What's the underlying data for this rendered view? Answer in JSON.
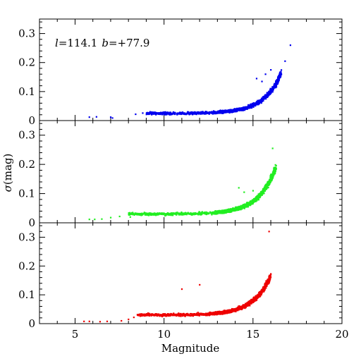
{
  "chart_data": {
    "type": "scatter",
    "xlabel": "Magnitude",
    "ylabel_prefix": "σ",
    "ylabel_unit": "(mag)",
    "xlim": [
      3,
      20
    ],
    "xticks": [
      5,
      10,
      15,
      20
    ],
    "annotation": {
      "l_symbol": "l",
      "l_value": "=114.1",
      "b_symbol": "b",
      "b_value": "=+77.9"
    },
    "panels": [
      {
        "name": "blue-panel",
        "color": "#0000ee",
        "ylim": [
          0,
          0.35
        ],
        "yticks": [
          0,
          0.1,
          0.2,
          0.3
        ],
        "ytick_labels": [
          "0",
          "0.1",
          "0.2",
          "0.3"
        ],
        "curve": {
          "floor": 0.025,
          "scale": 0.0014,
          "e_mag": 12,
          "x_start": 9.0,
          "x_end": 16.6,
          "density_from": 13.0
        },
        "sparse_points": [
          [
            5.8,
            0.012
          ],
          [
            6.2,
            0.013
          ],
          [
            7.0,
            0.012
          ],
          [
            7.1,
            0.009
          ],
          [
            8.4,
            0.022
          ],
          [
            8.8,
            0.026
          ]
        ],
        "outliers": [
          [
            16.8,
            0.205
          ],
          [
            17.1,
            0.26
          ],
          [
            15.2,
            0.145
          ],
          [
            15.5,
            0.135
          ],
          [
            15.7,
            0.16
          ],
          [
            16.0,
            0.175
          ]
        ]
      },
      {
        "name": "green-panel",
        "color": "#22ee22",
        "ylim": [
          0,
          0.35
        ],
        "yticks": [
          0,
          0.1,
          0.2,
          0.3
        ],
        "ytick_labels": [
          "0",
          "0.1",
          "0.2",
          "0.3"
        ],
        "curve": {
          "floor": 0.03,
          "scale": 0.0022,
          "e_mag": 12,
          "x_start": 8.0,
          "x_end": 16.3,
          "density_from": 13.0
        },
        "sparse_points": [
          [
            5.8,
            0.012
          ],
          [
            6.1,
            0.012
          ],
          [
            6.5,
            0.013
          ],
          [
            7.0,
            0.018
          ],
          [
            7.5,
            0.022
          ],
          [
            8.1,
            0.02
          ]
        ],
        "outliers": [
          [
            14.2,
            0.12
          ],
          [
            14.5,
            0.105
          ],
          [
            15.0,
            0.11
          ],
          [
            16.1,
            0.255
          ]
        ]
      },
      {
        "name": "red-panel",
        "color": "#ee0000",
        "ylim": [
          0,
          0.35
        ],
        "yticks": [
          0,
          0.1,
          0.2,
          0.3
        ],
        "ytick_labels": [
          "0",
          "0.1",
          "0.2",
          "0.3"
        ],
        "curve": {
          "floor": 0.03,
          "scale": 0.0025,
          "e_mag": 12,
          "x_start": 8.5,
          "x_end": 16.0,
          "density_from": 12.5
        },
        "sparse_points": [
          [
            5.5,
            0.008
          ],
          [
            5.8,
            0.008
          ],
          [
            6.4,
            0.007
          ],
          [
            6.8,
            0.008
          ],
          [
            7.6,
            0.01
          ],
          [
            8.0,
            0.015
          ],
          [
            8.3,
            0.022
          ]
        ],
        "outliers": [
          [
            11.0,
            0.12
          ],
          [
            12.0,
            0.135
          ],
          [
            15.9,
            0.32
          ]
        ]
      }
    ]
  }
}
